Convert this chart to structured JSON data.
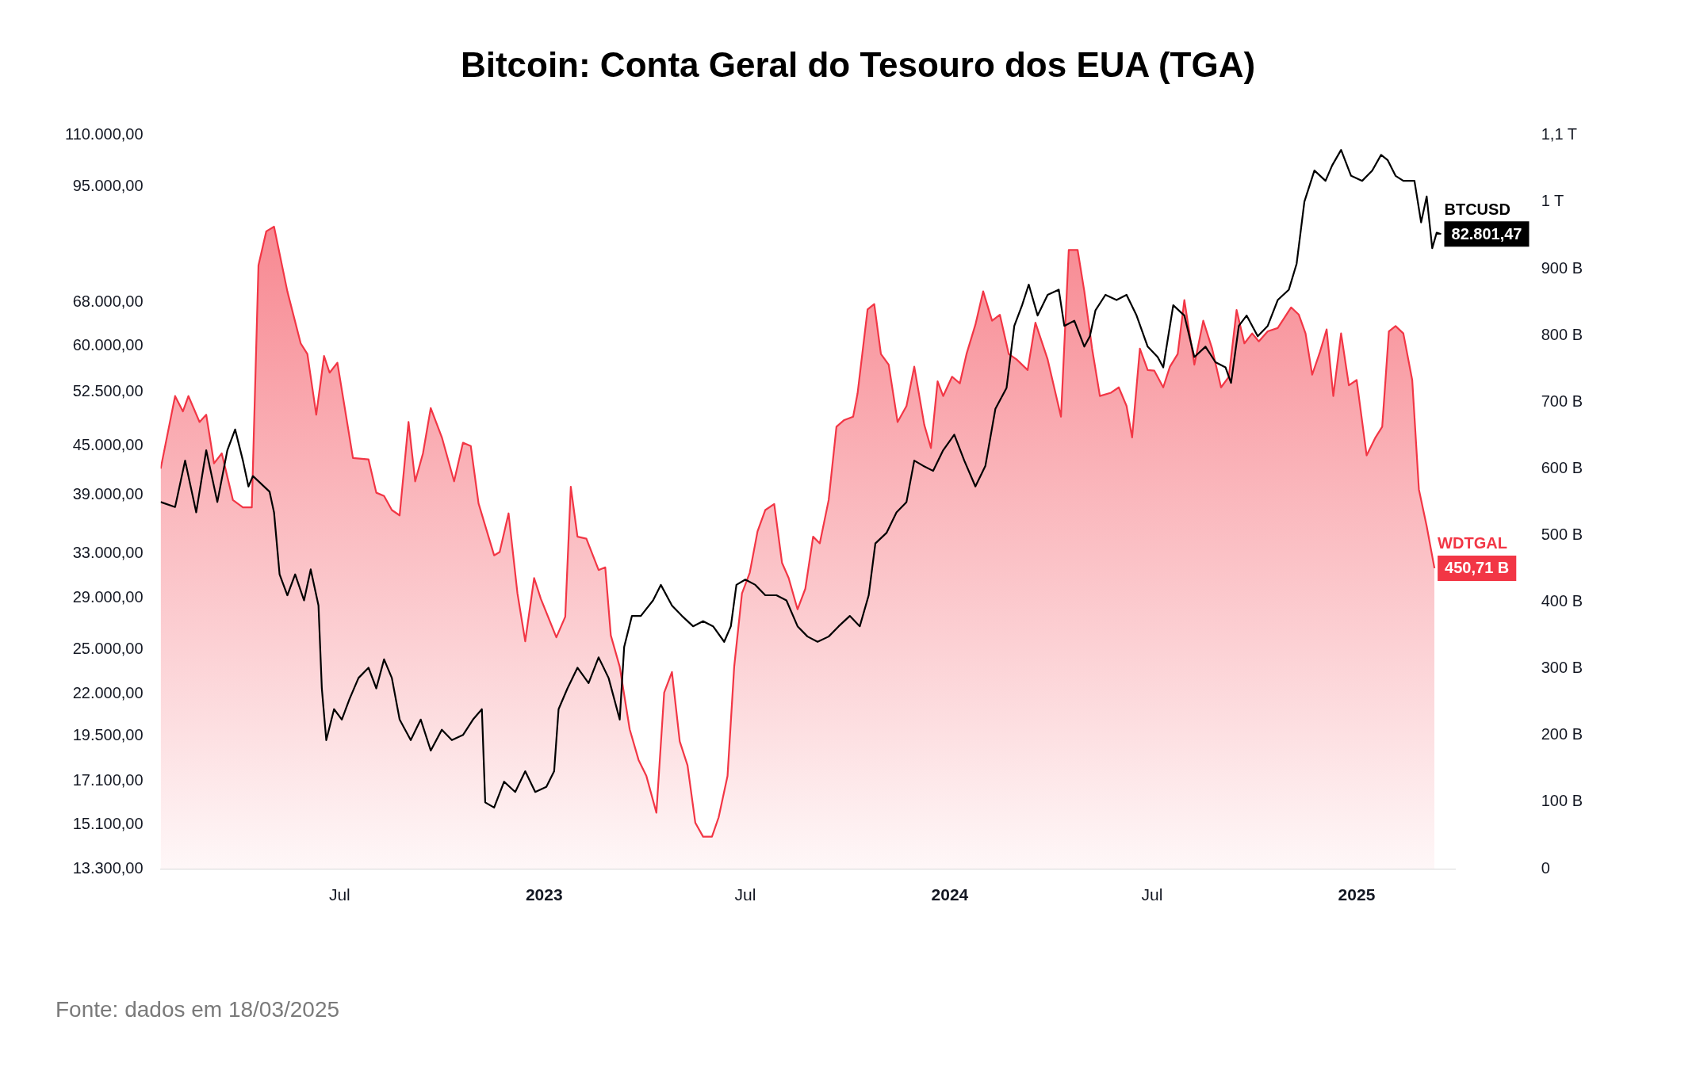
{
  "chart_data": {
    "type": "line",
    "title": "Bitcoin: Conta Geral do Tesouro dos EUA (TGA)",
    "annotations": [
      "Fonte: dados em 18/03/2025"
    ],
    "log": "y",
    "legend": false,
    "xlim": [
      "2022-01-21",
      "2025-03-31"
    ],
    "xticks": [
      {
        "value": "2022-07-01",
        "label": "Jul"
      },
      {
        "value": "2023-01-01",
        "label": "2023"
      },
      {
        "value": "2023-07-01",
        "label": "Jul"
      },
      {
        "value": "2024-01-01",
        "label": "2024"
      },
      {
        "value": "2024-07-01",
        "label": "Jul"
      },
      {
        "value": "2025-01-01",
        "label": "2025"
      }
    ],
    "ylim": [
      13300,
      110000
    ],
    "yticks": [
      {
        "value": 13300,
        "label": "13.300,00"
      },
      {
        "value": 15100,
        "label": "15.100,00"
      },
      {
        "value": 17100,
        "label": "17.100,00"
      },
      {
        "value": 19500,
        "label": "19.500,00"
      },
      {
        "value": 22000,
        "label": "22.000,00"
      },
      {
        "value": 25000,
        "label": "25.000,00"
      },
      {
        "value": 29000,
        "label": "29.000,00"
      },
      {
        "value": 33000,
        "label": "33.000,00"
      },
      {
        "value": 39000,
        "label": "39.000,00"
      },
      {
        "value": 45000,
        "label": "45.000,00"
      },
      {
        "value": 52500,
        "label": "52.500,00"
      },
      {
        "value": 60000,
        "label": "60.000,00"
      },
      {
        "value": 68000,
        "label": "68.000,00"
      },
      {
        "value": 95000,
        "label": "95.000,00"
      },
      {
        "value": 110000,
        "label": "110.000,00"
      }
    ],
    "y2lim": [
      0,
      1100000000000.0
    ],
    "y2ticks": [
      0,
      {
        "value": 100000000000.0,
        "label": "100 B"
      },
      {
        "value": 200000000000.0,
        "label": "200 B"
      },
      {
        "value": 300000000000.0,
        "label": "300 B"
      },
      {
        "value": 400000000000.0,
        "label": "400 B"
      },
      {
        "value": 500000000000.0,
        "label": "500 B"
      },
      {
        "value": 600000000000.0,
        "label": "600 B"
      },
      {
        "value": 700000000000.0,
        "label": "700 B"
      },
      {
        "value": 800000000000.0,
        "label": "800 B"
      },
      {
        "value": 900000000000.0,
        "label": "900 B"
      },
      {
        "value": 1000000000000.0,
        "label": "1 T"
      },
      {
        "value": 1100000000000.0,
        "label": "1,1 T"
      }
    ],
    "series": [
      {
        "name": "BTCUSD",
        "type": "line",
        "color": "#000000",
        "x": [
          "2022-01-21",
          "2022-02-03",
          "2022-02-12",
          "2022-02-22",
          "2022-03-03",
          "2022-03-13",
          "2022-03-22",
          "2022-03-29",
          "2022-04-05",
          "2022-04-10",
          "2022-04-14",
          "2022-04-29",
          "2022-05-03",
          "2022-05-08",
          "2022-05-15",
          "2022-05-22",
          "2022-05-30",
          "2022-06-05",
          "2022-06-12",
          "2022-06-15",
          "2022-06-19",
          "2022-06-26",
          "2022-07-03",
          "2022-07-10",
          "2022-07-18",
          "2022-07-27",
          "2022-08-03",
          "2022-08-10",
          "2022-08-17",
          "2022-08-24",
          "2022-09-03",
          "2022-09-12",
          "2022-09-21",
          "2022-10-01",
          "2022-10-10",
          "2022-10-20",
          "2022-10-29",
          "2022-11-06",
          "2022-11-09",
          "2022-11-17",
          "2022-11-26",
          "2022-12-06",
          "2022-12-15",
          "2022-12-24",
          "2023-01-03",
          "2023-01-10",
          "2023-01-14",
          "2023-01-22",
          "2023-01-31",
          "2023-02-10",
          "2023-02-19",
          "2023-02-28",
          "2023-03-10",
          "2023-03-14",
          "2023-03-21",
          "2023-03-29",
          "2023-04-09",
          "2023-04-16",
          "2023-04-26",
          "2023-05-05",
          "2023-05-15",
          "2023-05-24",
          "2023-06-02",
          "2023-06-12",
          "2023-06-18",
          "2023-06-23",
          "2023-07-01",
          "2023-07-10",
          "2023-07-19",
          "2023-07-29",
          "2023-08-07",
          "2023-08-17",
          "2023-08-26",
          "2023-09-04",
          "2023-09-14",
          "2023-09-23",
          "2023-10-03",
          "2023-10-12",
          "2023-10-20",
          "2023-10-26",
          "2023-11-05",
          "2023-11-14",
          "2023-11-23",
          "2023-11-30",
          "2023-12-08",
          "2023-12-17",
          "2023-12-26",
          "2024-01-05",
          "2024-01-14",
          "2024-01-24",
          "2024-02-02",
          "2024-02-11",
          "2024-02-21",
          "2024-02-28",
          "2024-03-06",
          "2024-03-12",
          "2024-03-20",
          "2024-03-29",
          "2024-04-08",
          "2024-04-13",
          "2024-04-22",
          "2024-05-01",
          "2024-05-06",
          "2024-05-11",
          "2024-05-20",
          "2024-05-30",
          "2024-06-08",
          "2024-06-17",
          "2024-06-27",
          "2024-07-06",
          "2024-07-11",
          "2024-07-20",
          "2024-07-30",
          "2024-08-08",
          "2024-08-18",
          "2024-08-27",
          "2024-09-05",
          "2024-09-10",
          "2024-09-17",
          "2024-09-24",
          "2024-10-04",
          "2024-10-13",
          "2024-10-22",
          "2024-11-01",
          "2024-11-08",
          "2024-11-15",
          "2024-11-24",
          "2024-12-04",
          "2024-12-10",
          "2024-12-18",
          "2024-12-27",
          "2025-01-06",
          "2025-01-15",
          "2025-01-23",
          "2025-01-29",
          "2025-02-05",
          "2025-02-12",
          "2025-02-22",
          "2025-02-28",
          "2025-03-05",
          "2025-03-10",
          "2025-03-14",
          "2025-03-18"
        ],
        "values": [
          38250,
          37700,
          43100,
          37130,
          44400,
          38250,
          44400,
          47150,
          43100,
          40000,
          41220,
          39400,
          37130,
          31050,
          29240,
          31050,
          28810,
          31500,
          28390,
          22360,
          19260,
          21060,
          20440,
          21700,
          23040,
          23730,
          22360,
          24310,
          23040,
          20440,
          19260,
          20440,
          18690,
          19850,
          19260,
          19550,
          20440,
          21060,
          16100,
          15860,
          17090,
          16590,
          17610,
          16590,
          16840,
          17610,
          21060,
          22360,
          23730,
          22700,
          24450,
          23040,
          20440,
          25190,
          27550,
          27550,
          28810,
          30130,
          28390,
          27550,
          26740,
          27140,
          26740,
          25570,
          26740,
          30130,
          30590,
          30130,
          29240,
          29240,
          28810,
          26740,
          25960,
          25570,
          25960,
          26740,
          27550,
          26740,
          29240,
          33950,
          34990,
          37130,
          38250,
          43100,
          42460,
          41840,
          44400,
          46450,
          43100,
          40000,
          42460,
          50040,
          53120,
          63530,
          67430,
          71570,
          65460,
          69480,
          70530,
          63530,
          64490,
          59850,
          61660,
          66430,
          69480,
          68450,
          69480,
          65460,
          59850,
          58080,
          56380,
          67430,
          65460,
          58080,
          59850,
          57220,
          56380,
          53920,
          63530,
          65460,
          61660,
          63530,
          68450,
          70530,
          76000,
          90900,
          99400,
          96500,
          100900,
          105500,
          97900,
          96500,
          99400,
          104000,
          102400,
          97900,
          96500,
          96500,
          85600,
          92250,
          79480,
          83100,
          82801.47
        ],
        "value_labels": [
          null,
          null,
          null,
          null,
          null,
          null,
          null,
          null,
          null,
          null,
          null,
          null,
          null,
          null,
          null,
          null,
          null,
          null,
          null,
          null,
          null,
          null,
          null,
          null,
          null,
          null,
          null,
          null,
          null,
          null,
          null,
          null,
          null,
          null,
          null,
          null,
          null,
          null,
          null,
          null,
          null,
          null,
          null,
          null,
          null,
          null,
          null,
          null,
          null,
          null,
          null,
          null,
          null,
          null,
          null,
          null,
          null,
          null,
          null,
          null,
          null,
          null,
          null,
          null,
          null,
          null,
          null,
          null,
          null,
          null,
          null,
          null,
          null,
          null,
          null,
          null,
          null,
          null,
          null,
          null,
          null,
          null,
          null,
          null,
          null,
          null,
          null,
          null,
          null,
          null,
          null,
          null,
          null,
          null,
          null,
          null,
          null,
          null,
          null,
          null,
          null,
          null,
          null,
          null,
          null,
          null,
          null,
          null,
          null,
          null,
          null,
          null,
          null,
          null,
          null,
          null,
          null,
          null,
          null,
          null,
          null,
          null,
          null,
          null,
          null,
          null,
          null,
          null,
          null,
          null,
          null,
          null,
          null,
          null,
          null,
          null,
          null,
          null,
          null,
          null,
          null,
          null,
          "82.801,47"
        ]
      },
      {
        "name": "WDTGAL",
        "type": "area",
        "axis": "y2",
        "color": "#f23645",
        "x": [
          "2022-01-21",
          "2022-02-03",
          "2022-02-10",
          "2022-02-15",
          "2022-02-25",
          "2022-03-03",
          "2022-03-10",
          "2022-03-17",
          "2022-03-27",
          "2022-04-05",
          "2022-04-13",
          "2022-04-19",
          "2022-04-26",
          "2022-05-03",
          "2022-05-15",
          "2022-05-27",
          "2022-06-02",
          "2022-06-10",
          "2022-06-17",
          "2022-06-22",
          "2022-06-29",
          "2022-07-13",
          "2022-07-27",
          "2022-08-03",
          "2022-08-10",
          "2022-08-17",
          "2022-08-24",
          "2022-09-01",
          "2022-09-07",
          "2022-09-14",
          "2022-09-21",
          "2022-10-01",
          "2022-10-12",
          "2022-10-20",
          "2022-10-27",
          "2022-11-03",
          "2022-11-17",
          "2022-11-22",
          "2022-11-30",
          "2022-12-08",
          "2022-12-15",
          "2022-12-23",
          "2022-12-29",
          "2023-01-12",
          "2023-01-20",
          "2023-01-25",
          "2023-01-31",
          "2023-02-08",
          "2023-02-19",
          "2023-02-25",
          "2023-03-02",
          "2023-03-10",
          "2023-03-19",
          "2023-03-27",
          "2023-04-03",
          "2023-04-12",
          "2023-04-19",
          "2023-04-26",
          "2023-05-03",
          "2023-05-10",
          "2023-05-17",
          "2023-05-24",
          "2023-06-01",
          "2023-06-07",
          "2023-06-15",
          "2023-06-21",
          "2023-06-28",
          "2023-07-05",
          "2023-07-12",
          "2023-07-19",
          "2023-07-27",
          "2023-08-03",
          "2023-08-09",
          "2023-08-17",
          "2023-08-24",
          "2023-08-31",
          "2023-09-06",
          "2023-09-14",
          "2023-09-21",
          "2023-09-28",
          "2023-10-06",
          "2023-10-10",
          "2023-10-19",
          "2023-10-25",
          "2023-10-31",
          "2023-11-07",
          "2023-11-15",
          "2023-11-23",
          "2023-11-30",
          "2023-12-09",
          "2023-12-15",
          "2023-12-21",
          "2023-12-26",
          "2024-01-03",
          "2024-01-10",
          "2024-01-16",
          "2024-01-24",
          "2024-01-31",
          "2024-02-08",
          "2024-02-15",
          "2024-02-23",
          "2024-03-01",
          "2024-03-11",
          "2024-03-18",
          "2024-03-29",
          "2024-04-10",
          "2024-04-17",
          "2024-04-25",
          "2024-05-01",
          "2024-05-08",
          "2024-05-15",
          "2024-05-25",
          "2024-06-01",
          "2024-06-08",
          "2024-06-13",
          "2024-06-20",
          "2024-06-27",
          "2024-07-03",
          "2024-07-11",
          "2024-07-17",
          "2024-07-24",
          "2024-07-30",
          "2024-08-08",
          "2024-08-16",
          "2024-08-24",
          "2024-09-01",
          "2024-09-08",
          "2024-09-15",
          "2024-09-22",
          "2024-09-29",
          "2024-10-05",
          "2024-10-13",
          "2024-10-22",
          "2024-11-03",
          "2024-11-10",
          "2024-11-16",
          "2024-11-22",
          "2024-11-29",
          "2024-12-05",
          "2024-12-11",
          "2024-12-18",
          "2024-12-25",
          "2025-01-01",
          "2025-01-10",
          "2025-01-18",
          "2025-01-24",
          "2025-01-30",
          "2025-02-05",
          "2025-02-12",
          "2025-02-20",
          "2025-02-26",
          "2025-03-05",
          "2025-03-12"
        ],
        "values": [
          600000000000.0,
          709000000000.0,
          686000000000.0,
          709000000000.0,
          670000000000.0,
          681000000000.0,
          608000000000.0,
          623000000000.0,
          553000000000.0,
          542000000000.0,
          542000000000.0,
          905000000000.0,
          956000000000.0,
          963000000000.0,
          866000000000.0,
          788000000000.0,
          772000000000.0,
          681000000000.0,
          769000000000.0,
          744000000000.0,
          759000000000.0,
          616000000000.0,
          614000000000.0,
          564000000000.0,
          559000000000.0,
          538000000000.0,
          530000000000.0,
          670000000000.0,
          581000000000.0,
          623000000000.0,
          691000000000.0,
          647000000000.0,
          581000000000.0,
          639000000000.0,
          634000000000.0,
          548000000000.0,
          470000000000.0,
          475000000000.0,
          533000000000.0,
          413000000000.0,
          341000000000.0,
          436000000000.0,
          405000000000.0,
          347000000000.0,
          378000000000.0,
          573000000000.0,
          498000000000.0,
          495000000000.0,
          448000000000.0,
          452000000000.0,
          350000000000.0,
          303000000000.0,
          209000000000.0,
          163000000000.0,
          139000000000.0,
          84000000000.0,
          264000000000.0,
          295000000000.0,
          191000000000.0,
          155000000000.0,
          69000000000.0,
          48000000000.0,
          48000000000.0,
          77000000000.0,
          139000000000.0,
          303000000000.0,
          413000000000.0,
          444000000000.0,
          506000000000.0,
          538000000000.0,
          547000000000.0,
          459000000000.0,
          436000000000.0,
          389000000000.0,
          420000000000.0,
          498000000000.0,
          488000000000.0,
          553000000000.0,
          663000000000.0,
          673000000000.0,
          678000000000.0,
          713000000000.0,
          839000000000.0,
          847000000000.0,
          772000000000.0,
          756000000000.0,
          670000000000.0,
          694000000000.0,
          753000000000.0,
          666000000000.0,
          631000000000.0,
          731000000000.0,
          709000000000.0,
          738000000000.0,
          728000000000.0,
          772000000000.0,
          816000000000.0,
          866000000000.0,
          822000000000.0,
          831000000000.0,
          772000000000.0,
          764000000000.0,
          748000000000.0,
          819000000000.0,
          764000000000.0,
          678000000000.0,
          928000000000.0,
          928000000000.0,
          866000000000.0,
          780000000000.0,
          709000000000.0,
          714000000000.0,
          722000000000.0,
          694000000000.0,
          647000000000.0,
          780000000000.0,
          748000000000.0,
          747000000000.0,
          722000000000.0,
          753000000000.0,
          772000000000.0,
          853000000000.0,
          756000000000.0,
          822000000000.0,
          780000000000.0,
          722000000000.0,
          738000000000.0,
          838000000000.0,
          788000000000.0,
          803000000000.0,
          791000000000.0,
          806000000000.0,
          811000000000.0,
          842000000000.0,
          831000000000.0,
          803000000000.0,
          741000000000.0,
          775000000000.0,
          809000000000.0,
          709000000000.0,
          803000000000.0,
          725000000000.0,
          733000000000.0,
          620000000000.0,
          647000000000.0,
          663000000000.0,
          806000000000.0,
          814000000000.0,
          803000000000.0,
          733000000000.0,
          569000000000.0,
          514000000000.0,
          450710000000.0
        ],
        "value_labels": [
          null,
          null,
          null,
          null,
          null,
          null,
          null,
          null,
          null,
          null,
          null,
          null,
          null,
          null,
          null,
          null,
          null,
          null,
          null,
          null,
          null,
          null,
          null,
          null,
          null,
          null,
          null,
          null,
          null,
          null,
          null,
          null,
          null,
          null,
          null,
          null,
          null,
          null,
          null,
          null,
          null,
          null,
          null,
          null,
          null,
          null,
          null,
          null,
          null,
          null,
          null,
          null,
          null,
          null,
          null,
          null,
          null,
          null,
          null,
          null,
          null,
          null,
          null,
          null,
          null,
          null,
          null,
          null,
          null,
          null,
          null,
          null,
          null,
          null,
          null,
          null,
          null,
          null,
          null,
          null,
          null,
          null,
          null,
          null,
          null,
          null,
          null,
          null,
          null,
          null,
          null,
          null,
          null,
          null,
          null,
          null,
          null,
          null,
          null,
          null,
          null,
          null,
          null,
          null,
          null,
          null,
          null,
          null,
          null,
          null,
          null,
          null,
          null,
          null,
          null,
          null,
          null,
          null,
          null,
          null,
          null,
          null,
          null,
          null,
          null,
          null,
          null,
          null,
          null,
          null,
          null,
          null,
          null,
          null,
          null,
          null,
          null,
          null,
          null,
          null,
          null,
          null,
          null,
          null,
          null,
          null,
          null,
          null,
          null,
          null,
          null,
          null,
          "450,71 B"
        ]
      }
    ]
  }
}
